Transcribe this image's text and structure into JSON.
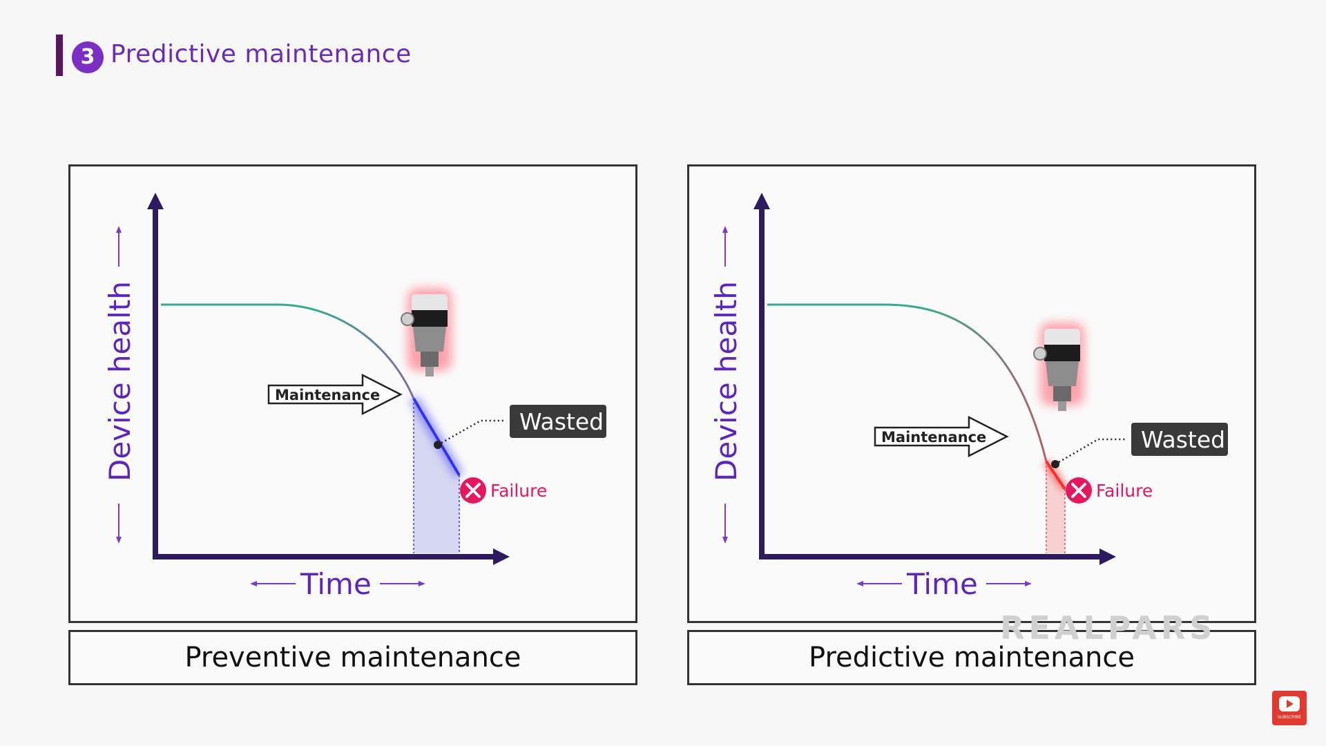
{
  "header": {
    "number": "3",
    "title": "Predictive maintenance",
    "accent_color": "#6a2bbd"
  },
  "panels": [
    {
      "y_label": "Device health",
      "x_label": "Time",
      "maintenance_label": "Maintenance",
      "wasted_label": "Wasted",
      "failure_label": "Failure",
      "caption": "Preventive maintenance",
      "highlight_color": "#3b3bff"
    },
    {
      "y_label": "Device health",
      "x_label": "Time",
      "maintenance_label": "Maintenance",
      "wasted_label": "Wasted",
      "failure_label": "Failure",
      "caption": "Predictive maintenance",
      "highlight_color": "#ff3a3a"
    }
  ],
  "watermark": "REALPARS",
  "subscribe": {
    "icon": "youtube-play-icon",
    "label": "SUBSCRIBE"
  },
  "colors": {
    "axis": "#2e1a5e",
    "healthy_curve": "#2fae8f",
    "failure": "#e8175d",
    "wasted_box": "#3a3a3a"
  }
}
